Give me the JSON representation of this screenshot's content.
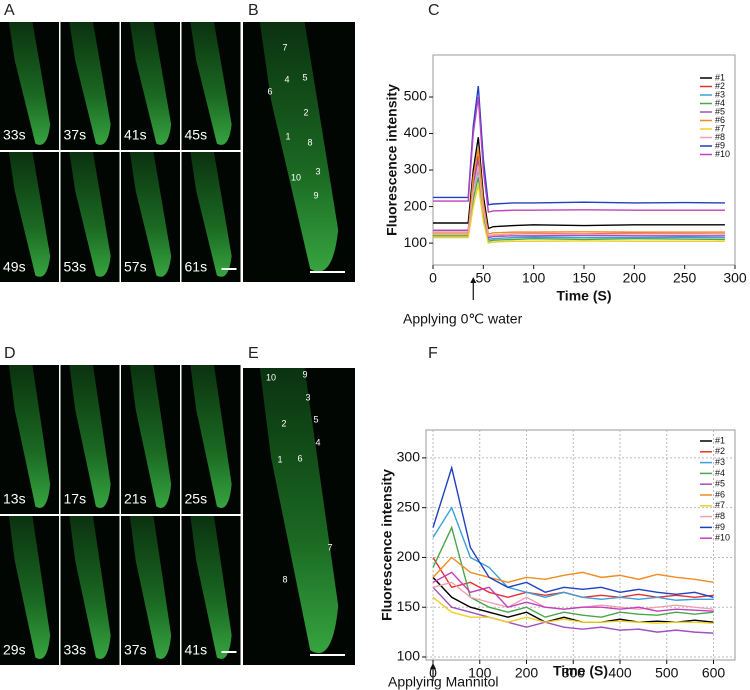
{
  "panels": {
    "A": {
      "label": "A",
      "times": [
        "33s",
        "37s",
        "41s",
        "45s",
        "49s",
        "53s",
        "57s",
        "61s"
      ]
    },
    "B": {
      "label": "B",
      "cells": [
        "7",
        "4",
        "5",
        "6",
        "2",
        "1",
        "8",
        "3",
        "10",
        "9"
      ]
    },
    "D": {
      "label": "D",
      "times": [
        "13s",
        "17s",
        "21s",
        "25s",
        "29s",
        "33s",
        "37s",
        "41s"
      ]
    },
    "E": {
      "label": "E",
      "cells": [
        "10",
        "9",
        "3",
        "5",
        "2",
        "4",
        "1",
        "6",
        "7",
        "8"
      ]
    },
    "C": {
      "label": "C"
    },
    "F": {
      "label": "F"
    }
  },
  "chart_data": [
    {
      "type": "line",
      "y_label": "Fluorescence intensity",
      "x_label": "Time (S)",
      "annotation": {
        "text": "Applying 0℃  water",
        "x": 40
      },
      "xlim": [
        0,
        300
      ],
      "xticks": [
        0,
        50,
        100,
        150,
        200,
        250,
        300
      ],
      "ylim": [
        40,
        615
      ],
      "yticks": [
        100,
        200,
        300,
        400,
        500
      ],
      "grid": false,
      "legend": "top-right",
      "x": [
        0,
        20,
        35,
        40,
        45,
        50,
        55,
        60,
        80,
        100,
        150,
        200,
        250,
        290
      ],
      "series": [
        {
          "name": "#1",
          "color": "#000000",
          "values": [
            155,
            155,
            155,
            300,
            390,
            230,
            140,
            145,
            148,
            150,
            148,
            150,
            150,
            150
          ]
        },
        {
          "name": "#2",
          "color": "#e8312f",
          "values": [
            130,
            130,
            130,
            260,
            340,
            200,
            120,
            122,
            125,
            126,
            125,
            127,
            126,
            125
          ]
        },
        {
          "name": "#3",
          "color": "#3aa0d8",
          "values": [
            135,
            135,
            135,
            240,
            300,
            180,
            110,
            112,
            115,
            116,
            115,
            115,
            116,
            115
          ]
        },
        {
          "name": "#4",
          "color": "#4aa64a",
          "values": [
            120,
            120,
            120,
            220,
            280,
            170,
            105,
            108,
            110,
            112,
            110,
            112,
            111,
            110
          ]
        },
        {
          "name": "#5",
          "color": "#a050c0",
          "values": [
            135,
            135,
            135,
            260,
            330,
            190,
            115,
            118,
            120,
            120,
            121,
            120,
            120,
            120
          ]
        },
        {
          "name": "#6",
          "color": "#f08c20",
          "values": [
            125,
            125,
            125,
            280,
            360,
            210,
            125,
            128,
            130,
            130,
            131,
            130,
            130,
            130
          ]
        },
        {
          "name": "#7",
          "color": "#f0d020",
          "values": [
            115,
            115,
            115,
            200,
            260,
            160,
            100,
            103,
            105,
            105,
            106,
            105,
            105,
            105
          ]
        },
        {
          "name": "#8",
          "color": "#f0a0b0",
          "values": [
            130,
            130,
            130,
            240,
            310,
            190,
            120,
            122,
            125,
            125,
            124,
            125,
            125,
            125
          ]
        },
        {
          "name": "#9",
          "color": "#2040c0",
          "values": [
            225,
            225,
            225,
            420,
            530,
            330,
            205,
            207,
            210,
            210,
            212,
            210,
            211,
            210
          ]
        },
        {
          "name": "#10",
          "color": "#c040c0",
          "values": [
            215,
            215,
            215,
            400,
            500,
            300,
            185,
            188,
            190,
            190,
            191,
            190,
            190,
            190
          ]
        }
      ]
    },
    {
      "type": "line",
      "y_label": "Fluorescence intensity",
      "x_label": "Time (S)",
      "annotation": {
        "text": "Applying Mannitol",
        "x": 0
      },
      "xlim": [
        -15,
        646
      ],
      "xticks": [
        0,
        100,
        200,
        300,
        400,
        500,
        600
      ],
      "ylim": [
        97,
        328
      ],
      "yticks": [
        100,
        150,
        200,
        250,
        300
      ],
      "grid": true,
      "legend": "top-right",
      "x": [
        0,
        40,
        80,
        120,
        160,
        200,
        240,
        280,
        320,
        360,
        400,
        440,
        480,
        520,
        560,
        600
      ],
      "series": [
        {
          "name": "#1",
          "color": "#000000",
          "values": [
            180,
            160,
            150,
            145,
            140,
            145,
            135,
            140,
            135,
            135,
            138,
            135,
            136,
            135,
            137,
            135
          ]
        },
        {
          "name": "#2",
          "color": "#e8312f",
          "values": [
            200,
            170,
            175,
            165,
            160,
            165,
            162,
            165,
            160,
            162,
            160,
            163,
            160,
            162,
            160,
            162
          ]
        },
        {
          "name": "#3",
          "color": "#3aa0d8",
          "values": [
            220,
            250,
            200,
            190,
            170,
            165,
            160,
            165,
            160,
            158,
            160,
            158,
            160,
            157,
            158,
            158
          ]
        },
        {
          "name": "#4",
          "color": "#4aa64a",
          "values": [
            190,
            230,
            160,
            150,
            145,
            150,
            140,
            145,
            142,
            140,
            145,
            143,
            142,
            145,
            143,
            145
          ]
        },
        {
          "name": "#5",
          "color": "#a050c0",
          "values": [
            170,
            150,
            145,
            140,
            135,
            130,
            135,
            130,
            128,
            130,
            127,
            128,
            125,
            127,
            125,
            124
          ]
        },
        {
          "name": "#6",
          "color": "#f08c20",
          "values": [
            180,
            200,
            185,
            180,
            175,
            180,
            178,
            182,
            185,
            180,
            182,
            178,
            183,
            180,
            178,
            175
          ]
        },
        {
          "name": "#7",
          "color": "#f0d020",
          "values": [
            160,
            145,
            140,
            140,
            135,
            140,
            135,
            138,
            135,
            135,
            136,
            135,
            134,
            135,
            135,
            134
          ]
        },
        {
          "name": "#8",
          "color": "#f0a0b0",
          "values": [
            170,
            175,
            160,
            155,
            150,
            160,
            150,
            148,
            150,
            152,
            150,
            148,
            150,
            152,
            150,
            148
          ]
        },
        {
          "name": "#9",
          "color": "#2040c0",
          "values": [
            230,
            290,
            210,
            180,
            170,
            175,
            165,
            170,
            168,
            170,
            165,
            168,
            165,
            163,
            165,
            160
          ]
        },
        {
          "name": "#10",
          "color": "#c040c0",
          "values": [
            175,
            185,
            165,
            170,
            150,
            155,
            150,
            148,
            150,
            150,
            148,
            150,
            146,
            148,
            147,
            146
          ]
        }
      ]
    }
  ]
}
